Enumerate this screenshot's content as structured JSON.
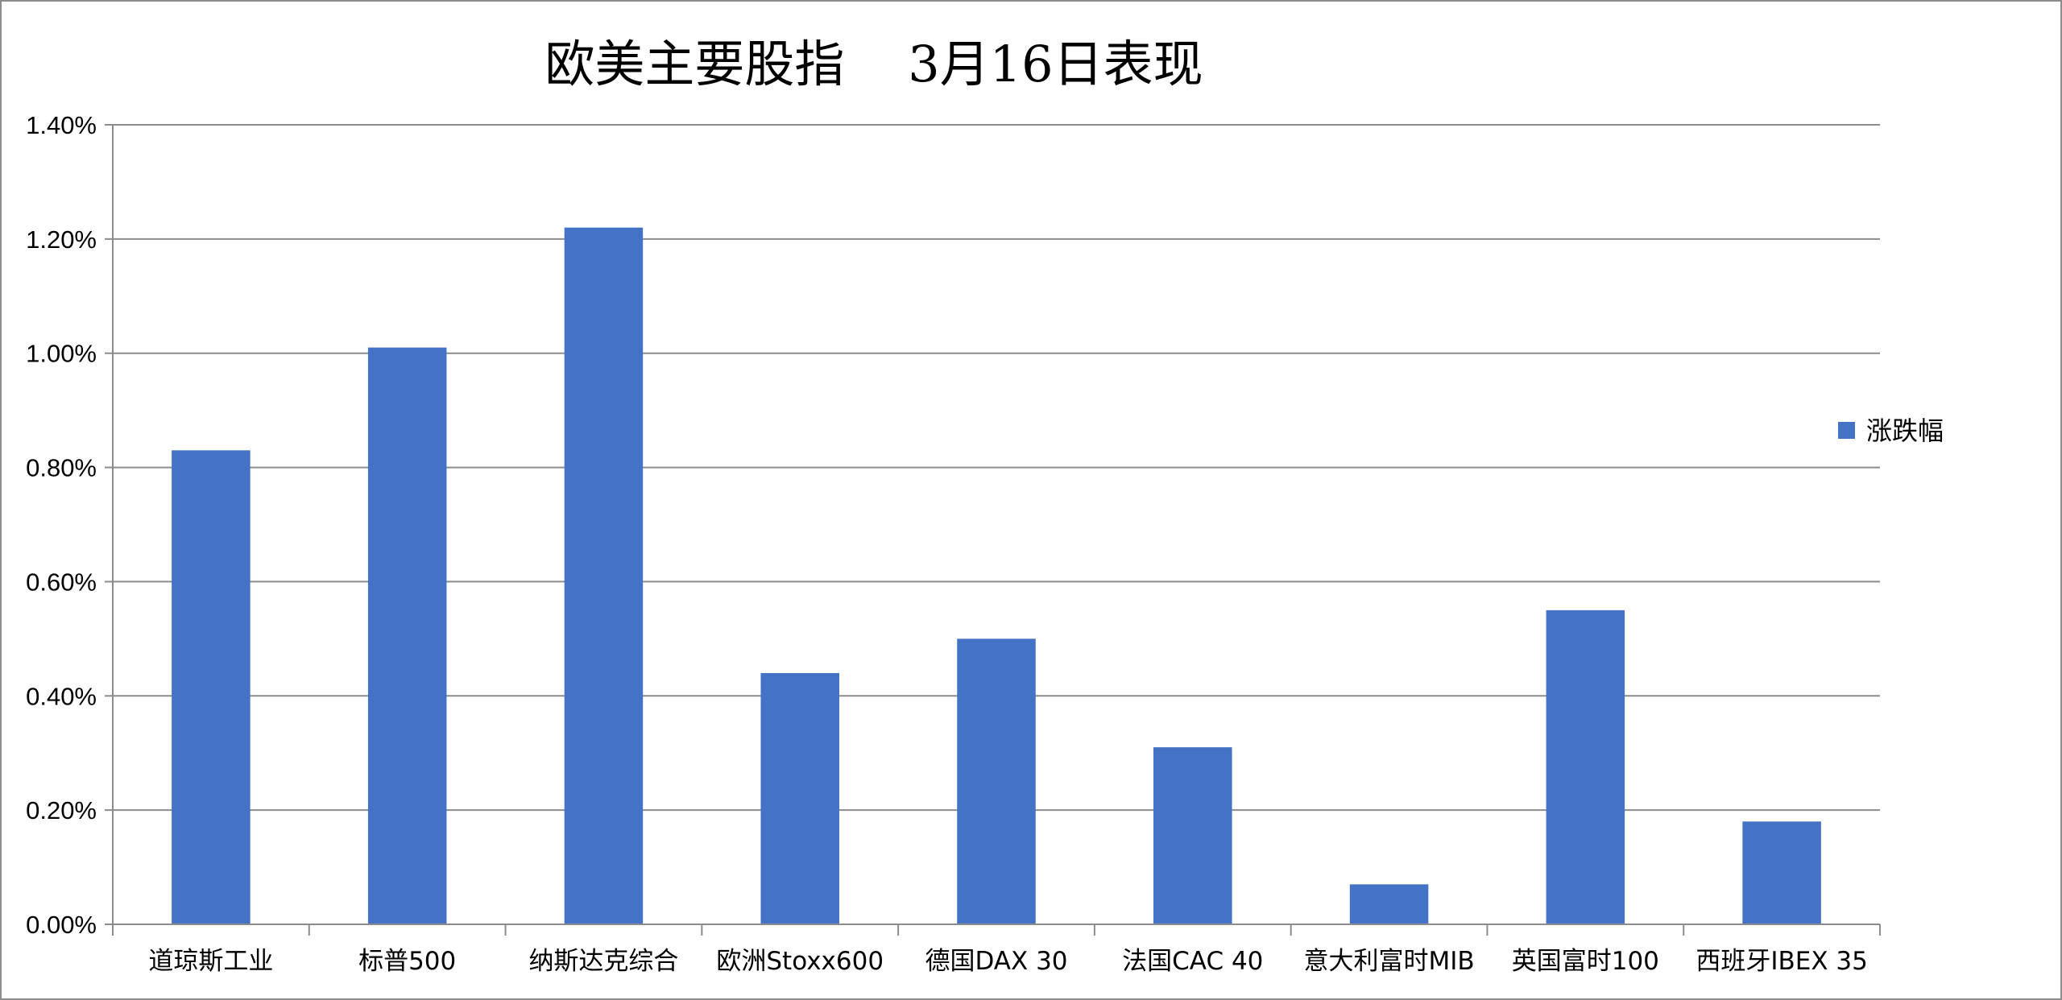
{
  "chart_data": {
    "type": "bar",
    "title": "欧美主要股指    3月16日表现",
    "xlabel": "",
    "ylabel": "",
    "categories": [
      "道琼斯工业",
      "标普500",
      "纳斯达克综合",
      "欧洲Stoxx600",
      "德国DAX 30",
      "法国CAC 40",
      "意大利富时MIB",
      "英国富时100",
      "西班牙IBEX 35"
    ],
    "series": [
      {
        "name": "涨跌幅",
        "values": [
          0.0083,
          0.0101,
          0.0122,
          0.0044,
          0.005,
          0.0031,
          0.0007,
          0.0055,
          0.0018
        ],
        "color": "#4472C4"
      }
    ],
    "ylim": [
      0,
      0.014
    ],
    "yticks": [
      0,
      0.002,
      0.004,
      0.006,
      0.008,
      0.01,
      0.012,
      0.014
    ],
    "ytick_labels": [
      "0.00%",
      "0.20%",
      "0.40%",
      "0.60%",
      "0.80%",
      "1.00%",
      "1.20%",
      "1.40%"
    ],
    "grid": true,
    "legend": "right"
  }
}
